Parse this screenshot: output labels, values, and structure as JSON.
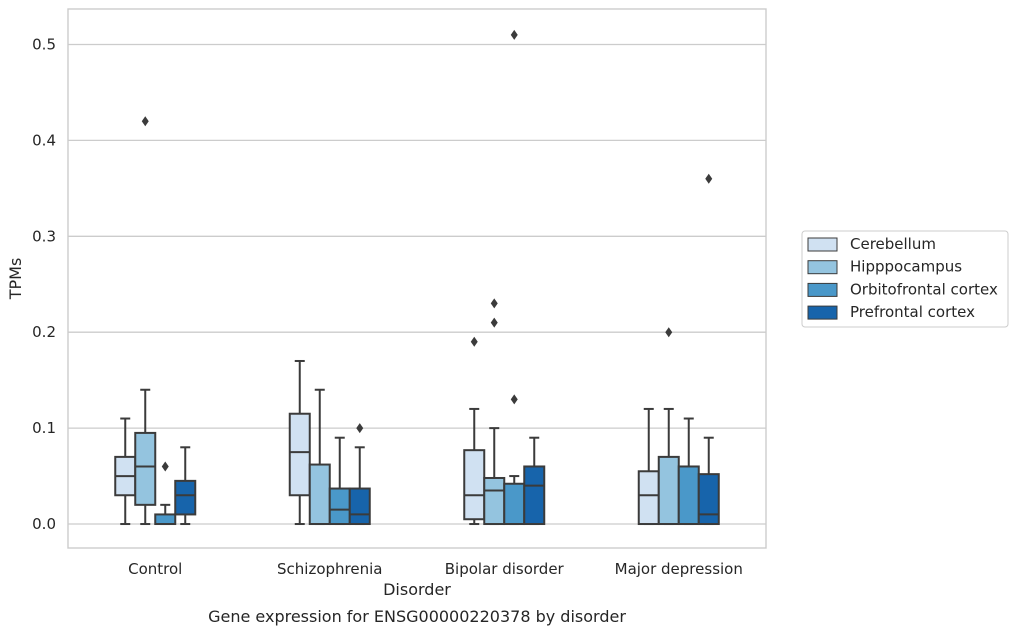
{
  "chart_data": {
    "type": "boxplot",
    "caption": "Gene expression for ENSG00000220378 by disorder",
    "xlabel": "Disorder",
    "ylabel": "TPMs",
    "ylim": [
      -0.025,
      0.537
    ],
    "yticks": [
      "0.0",
      "0.1",
      "0.2",
      "0.3",
      "0.4",
      "0.5"
    ],
    "grid": true,
    "legend_position": "right",
    "categories": [
      "Control",
      "Schizophrenia",
      "Bipolar disorder",
      "Major depression"
    ],
    "series": [
      {
        "name": "Cerebellum",
        "color": "#d0e1f2",
        "boxes": [
          {
            "whislo": 0.0,
            "q1": 0.03,
            "med": 0.05,
            "q3": 0.07,
            "whishi": 0.11,
            "fliers": []
          },
          {
            "whislo": 0.0,
            "q1": 0.03,
            "med": 0.075,
            "q3": 0.115,
            "whishi": 0.17,
            "fliers": []
          },
          {
            "whislo": 0.0,
            "q1": 0.005,
            "med": 0.03,
            "q3": 0.077,
            "whishi": 0.12,
            "fliers": [
              0.19
            ]
          },
          {
            "whislo": 0.0,
            "q1": 0.0,
            "med": 0.03,
            "q3": 0.055,
            "whishi": 0.12,
            "fliers": []
          }
        ]
      },
      {
        "name": "Hipppocampus",
        "color": "#94c4df",
        "boxes": [
          {
            "whislo": 0.0,
            "q1": 0.02,
            "med": 0.06,
            "q3": 0.095,
            "whishi": 0.14,
            "fliers": [
              0.42
            ]
          },
          {
            "whislo": 0.0,
            "q1": 0.0,
            "med": 0.0,
            "q3": 0.062,
            "whishi": 0.14,
            "fliers": []
          },
          {
            "whislo": 0.0,
            "q1": 0.0,
            "med": 0.035,
            "q3": 0.048,
            "whishi": 0.1,
            "fliers": [
              0.21,
              0.23
            ]
          },
          {
            "whislo": 0.0,
            "q1": 0.0,
            "med": 0.0,
            "q3": 0.07,
            "whishi": 0.12,
            "fliers": [
              0.2
            ]
          }
        ]
      },
      {
        "name": "Orbitofrontal cortex",
        "color": "#4a98c9",
        "boxes": [
          {
            "whislo": 0.0,
            "q1": 0.0,
            "med": 0.0,
            "q3": 0.01,
            "whishi": 0.02,
            "fliers": [
              0.06
            ]
          },
          {
            "whislo": 0.0,
            "q1": 0.0,
            "med": 0.015,
            "q3": 0.037,
            "whishi": 0.09,
            "fliers": []
          },
          {
            "whislo": 0.0,
            "q1": 0.0,
            "med": 0.0,
            "q3": 0.042,
            "whishi": 0.05,
            "fliers": [
              0.13,
              0.51
            ]
          },
          {
            "whislo": 0.0,
            "q1": 0.0,
            "med": 0.0,
            "q3": 0.06,
            "whishi": 0.11,
            "fliers": []
          }
        ]
      },
      {
        "name": "Prefrontal cortex",
        "color": "#1764ab",
        "boxes": [
          {
            "whislo": 0.0,
            "q1": 0.01,
            "med": 0.03,
            "q3": 0.045,
            "whishi": 0.08,
            "fliers": []
          },
          {
            "whislo": 0.0,
            "q1": 0.0,
            "med": 0.01,
            "q3": 0.037,
            "whishi": 0.08,
            "fliers": [
              0.1
            ]
          },
          {
            "whislo": 0.0,
            "q1": 0.0,
            "med": 0.04,
            "q3": 0.06,
            "whishi": 0.09,
            "fliers": []
          },
          {
            "whislo": 0.0,
            "q1": 0.0,
            "med": 0.01,
            "q3": 0.052,
            "whishi": 0.09,
            "fliers": [
              0.36
            ]
          }
        ]
      }
    ]
  }
}
